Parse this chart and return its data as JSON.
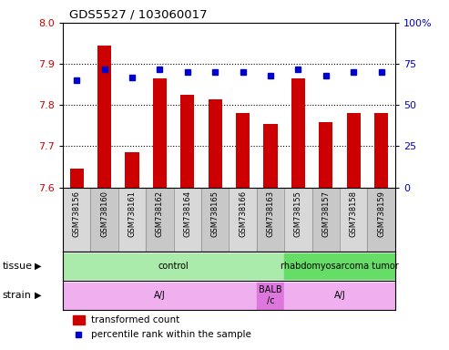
{
  "title": "GDS5527 / 103060017",
  "samples": [
    "GSM738156",
    "GSM738160",
    "GSM738161",
    "GSM738162",
    "GSM738164",
    "GSM738165",
    "GSM738166",
    "GSM738163",
    "GSM738155",
    "GSM738157",
    "GSM738158",
    "GSM738159"
  ],
  "transformed_count": [
    7.645,
    7.945,
    7.685,
    7.865,
    7.825,
    7.815,
    7.78,
    7.755,
    7.865,
    7.758,
    7.78,
    7.78
  ],
  "percentile_rank": [
    65,
    72,
    67,
    72,
    70,
    70,
    70,
    68,
    72,
    68,
    70,
    70
  ],
  "ylim_left": [
    7.6,
    8.0
  ],
  "ylim_right": [
    0,
    100
  ],
  "yticks_left": [
    7.6,
    7.7,
    7.8,
    7.9,
    8.0
  ],
  "yticks_right": [
    0,
    25,
    50,
    75,
    100
  ],
  "bar_color": "#cc0000",
  "dot_color": "#0000cc",
  "tissue_control_color": "#aaeaaa",
  "tissue_tumor_color": "#66dd66",
  "strain_aj_color": "#f0b0f0",
  "strain_balb_color": "#dd77dd",
  "legend_bar_color": "#cc0000",
  "legend_dot_color": "#0000cc",
  "grid_color": "#000000",
  "bg_color": "#ffffff",
  "left_axis_color": "#cc0000",
  "right_axis_color": "#0000cc",
  "sample_bg_even": "#d8d8d8",
  "sample_bg_odd": "#c8c8c8"
}
